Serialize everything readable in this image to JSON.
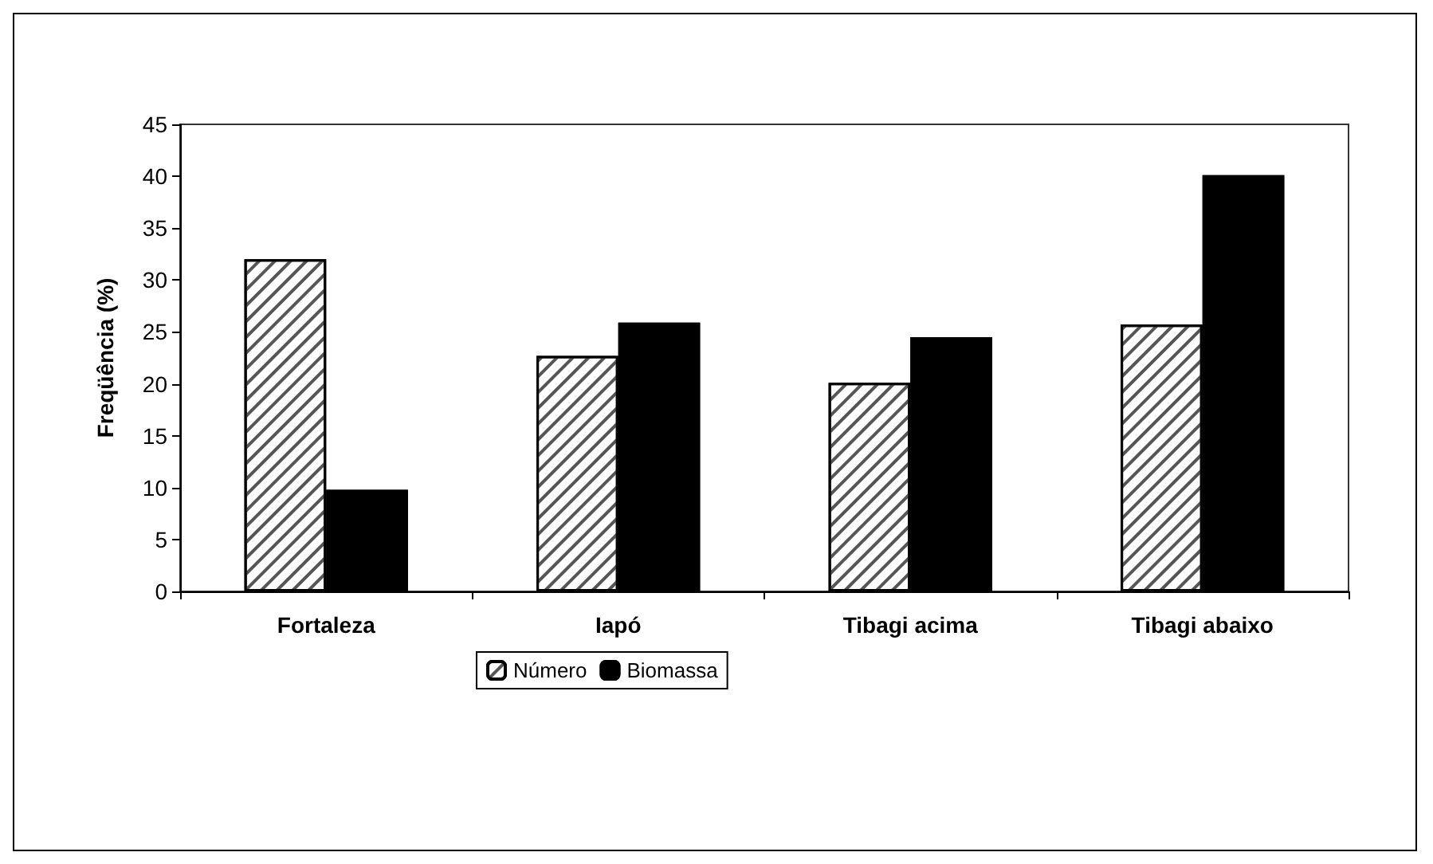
{
  "chart_data": {
    "type": "bar",
    "ylabel": "Freqüência (%)",
    "categories": [
      "Fortaleza",
      "Iapó",
      "Tibagi acima",
      "Tibagi abaixo"
    ],
    "series": [
      {
        "name": "Número",
        "color": "#ffffff",
        "values": [
          32.0,
          22.7,
          20.1,
          25.7
        ]
      },
      {
        "name": "Biomassa",
        "color": "#000000",
        "values": [
          9.8,
          25.9,
          24.5,
          40.1
        ]
      }
    ],
    "ylim": [
      0,
      45
    ],
    "yticks": [
      0,
      5,
      10,
      15,
      20,
      25,
      30,
      35,
      40,
      45
    ],
    "grid": false,
    "legend": "bottom"
  }
}
